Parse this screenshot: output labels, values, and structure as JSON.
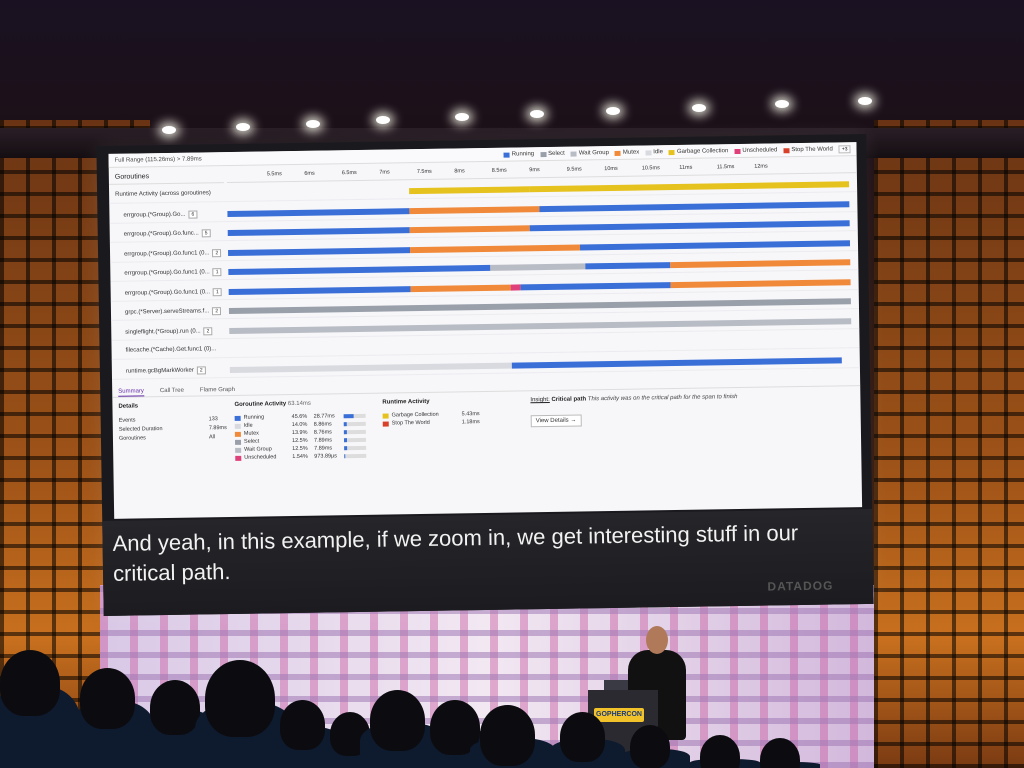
{
  "screen": {
    "subtitle": "And yeah, in this example, if we zoom in, we get interesting stuff in our critical path.",
    "brand": "DATADOG"
  },
  "podium": {
    "logo": "GOPHERCON"
  },
  "app": {
    "range": "Full Range (115.26ms)  >  7.89ms",
    "legend": [
      {
        "label": "Running",
        "color": "#3a6fd8"
      },
      {
        "label": "Select",
        "color": "#9aa0aa"
      },
      {
        "label": "Wait Group",
        "color": "#b8bcc4"
      },
      {
        "label": "Mutex",
        "color": "#f08a3a"
      },
      {
        "label": "Idle",
        "color": "#d8dadf"
      },
      {
        "label": "Garbage Collection",
        "color": "#e6c21e"
      },
      {
        "label": "Unscheduled",
        "color": "#e0407a"
      },
      {
        "label": "Stop The World",
        "color": "#d8402a"
      }
    ],
    "legend_more": "+3",
    "goroutines_label": "Goroutines",
    "ticks": [
      "5.5ms",
      "6ms",
      "6.5ms",
      "7ms",
      "7.5ms",
      "8ms",
      "8.5ms",
      "9ms",
      "9.5ms",
      "10ms",
      "10.5ms",
      "11ms",
      "11.5ms",
      "12ms"
    ],
    "rows": [
      {
        "label": "Runtime Activity (across goroutines)",
        "badge": ""
      },
      {
        "label": "errgroup.(*Group).Go...",
        "badge": "6"
      },
      {
        "label": "errgroup.(*Group).Go.func...",
        "badge": "5"
      },
      {
        "label": "errgroup.(*Group).Go.func1 (0...",
        "badge": "2"
      },
      {
        "label": "errgroup.(*Group).Go.func1 (0...",
        "badge": "1"
      },
      {
        "label": "errgroup.(*Group).Go.func1 (0...",
        "badge": "1"
      },
      {
        "label": "grpc.(*Server).serveStreams.f...",
        "badge": "2"
      },
      {
        "label": "singleflight.(*Group).run (0...",
        "badge": "2"
      },
      {
        "label": "filecache.(*Cache).Get.func1 (0)...",
        "badge": ""
      },
      {
        "label": "runtime.gcBgMarkWorker",
        "badge": "2"
      }
    ],
    "tabs": [
      "Summary",
      "Call Tree",
      "Flame Graph"
    ],
    "details": {
      "title": "Details",
      "events_label": "Events",
      "events_value": "133",
      "duration_label": "Selected Duration",
      "duration_value": "7.89ms",
      "goroutines_label": "Goroutines",
      "goroutines_value": "All"
    },
    "goroutine_activity": {
      "title": "Goroutine Activity",
      "total": "63.14ms",
      "items": [
        {
          "name": "Running",
          "pct": "45.6%",
          "dur": "28.77ms",
          "color": "#3a6fd8",
          "fraction": 0.46
        },
        {
          "name": "Idle",
          "pct": "14.0%",
          "dur": "8.86ms",
          "color": "#d8dadf",
          "fraction": 0.14
        },
        {
          "name": "Mutex",
          "pct": "13.9%",
          "dur": "8.76ms",
          "color": "#f08a3a",
          "fraction": 0.14
        },
        {
          "name": "Select",
          "pct": "12.5%",
          "dur": "7.89ms",
          "color": "#9aa0aa",
          "fraction": 0.125
        },
        {
          "name": "Wait Group",
          "pct": "12.5%",
          "dur": "7.89ms",
          "color": "#b8bcc4",
          "fraction": 0.125
        },
        {
          "name": "Unscheduled",
          "pct": "1.54%",
          "dur": "973.89µs",
          "color": "#e0407a",
          "fraction": 0.015
        }
      ]
    },
    "runtime_activity": {
      "title": "Runtime Activity",
      "items": [
        {
          "name": "Garbage Collection",
          "dur": "5.43ms",
          "color": "#e6c21e"
        },
        {
          "name": "Stop The World",
          "dur": "1.18ms",
          "color": "#d8402a"
        }
      ]
    },
    "insight": {
      "label": "Insight:",
      "title": "Critical path",
      "text": "This activity was on the critical path for the span to finish",
      "button": "View Details →"
    }
  }
}
